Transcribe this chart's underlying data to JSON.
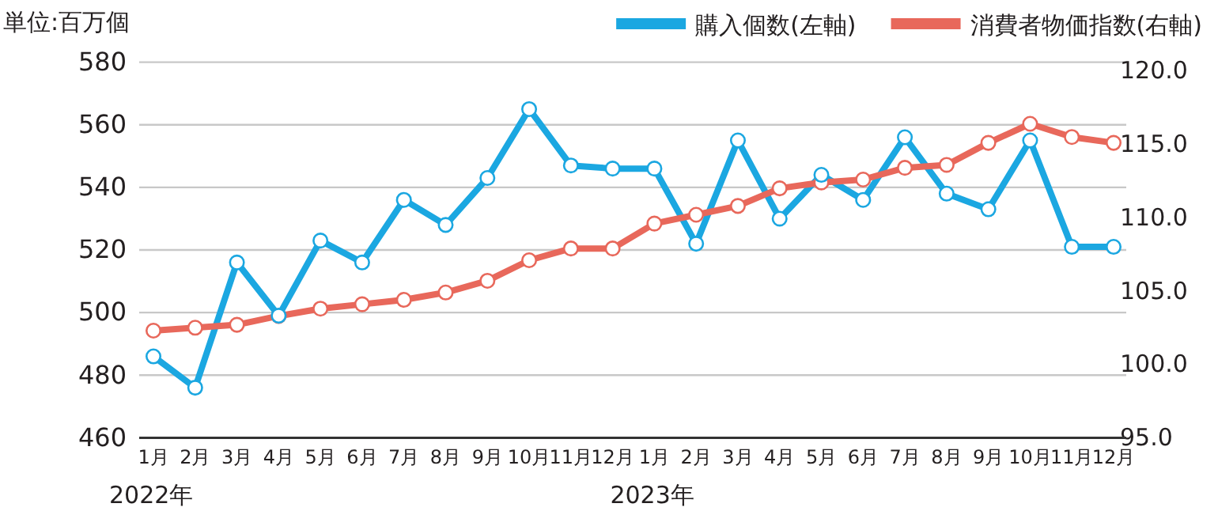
{
  "chart_data": {
    "type": "line",
    "ylabel": "単位:百万個",
    "categories": [
      "1月",
      "2月",
      "3月",
      "4月",
      "5月",
      "6月",
      "7月",
      "8月",
      "9月",
      "10月",
      "11月",
      "12月",
      "1月",
      "2月",
      "3月",
      "4月",
      "5月",
      "6月",
      "7月",
      "8月",
      "9月",
      "10月",
      "11月",
      "12月"
    ],
    "series": [
      {
        "name": "購入個数(左軸)",
        "color": "#1ba7e1",
        "values": [
          486,
          476,
          516,
          499,
          523,
          516,
          536,
          528,
          543,
          565,
          547,
          546,
          546,
          522,
          555,
          530,
          544,
          536,
          556,
          538,
          533,
          555,
          521,
          521
        ]
      },
      {
        "name": "消費者物価指数(右軸)",
        "color": "#e8685b",
        "axis": "y2",
        "values": [
          102.3,
          102.5,
          102.7,
          103.3,
          103.8,
          104.1,
          104.4,
          104.9,
          105.7,
          107.1,
          107.9,
          107.9,
          109.6,
          110.2,
          110.8,
          112.0,
          112.4,
          112.6,
          113.4,
          113.6,
          115.1,
          116.4,
          115.5,
          115.1
        ]
      }
    ],
    "ylim": [
      460,
      580
    ],
    "yticks": [
      460,
      480,
      500,
      520,
      540,
      560,
      580
    ],
    "y2lim": [
      95,
      120.6
    ],
    "y2ticks": [
      {
        "value": 95,
        "label": "95.0"
      },
      {
        "value": 100,
        "label": "100.0"
      },
      {
        "value": 105,
        "label": "105.0"
      },
      {
        "value": 110,
        "label": "110.0"
      },
      {
        "value": 115,
        "label": "115.0"
      },
      {
        "value": 120,
        "label": "120.0"
      }
    ],
    "annotations": [
      "2022年",
      "2023年"
    ],
    "grid": "y",
    "legend": "top right",
    "marker": "circle",
    "line_style": "solid"
  }
}
